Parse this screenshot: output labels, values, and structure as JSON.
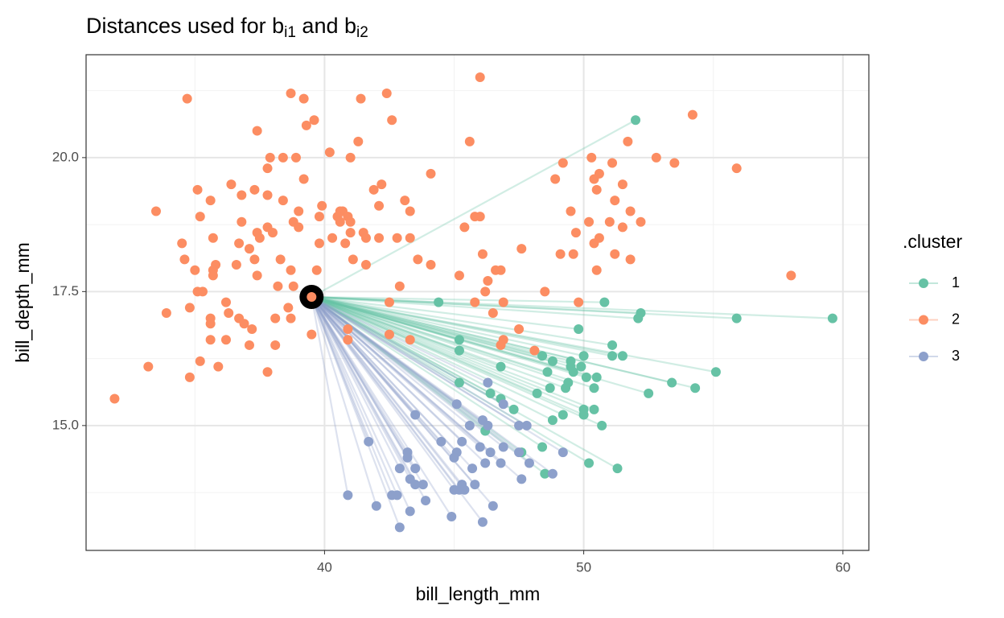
{
  "chart_data": {
    "type": "scatter",
    "title": [
      "Distances used for b",
      "i1",
      " and b",
      "i2"
    ],
    "x_label": "bill_length_mm",
    "y_label": "bill_depth_mm",
    "legend_title": ".cluster",
    "xlim": [
      30.8,
      61.0
    ],
    "ylim": [
      12.67,
      21.92
    ],
    "xticks": [
      40,
      50,
      60
    ],
    "yticks": [
      {
        "value": 15,
        "label": "15.0"
      },
      17.5,
      {
        "value": 20,
        "label": "20.0"
      }
    ],
    "minor_xticks": [
      35,
      45,
      55
    ],
    "minor_yticks": [
      13.75,
      16.25,
      18.75,
      21.25
    ],
    "grid": true,
    "legend": "right",
    "focus": {
      "x": 39.5,
      "y": 17.4,
      "color": "#000000"
    },
    "series": [
      {
        "name": "1",
        "color": "#66c2a5",
        "linked": true,
        "x": [
          52.0,
          44.4,
          50.8,
          59.6,
          55.9,
          52.2,
          52.1,
          49.8,
          45.2,
          45.2,
          51.1,
          51.1,
          51.5,
          50.0,
          48.4,
          48.8,
          49.5,
          49.5,
          46.8,
          49.9,
          48.6,
          55.1,
          49.6,
          50.1,
          50.5,
          49.4,
          53.4,
          45.2,
          50.4,
          49.3,
          48.7,
          54.3,
          46.4,
          52.5,
          48.2,
          46.8,
          50.0,
          50.4,
          47.3,
          49.2,
          48.8,
          50.0,
          50.7,
          46.2,
          48.4,
          47.6,
          50.2,
          51.3,
          48.5
        ],
        "y": [
          20.7,
          17.3,
          17.3,
          17.0,
          17.0,
          17.1,
          17.0,
          16.8,
          16.6,
          16.4,
          16.5,
          16.3,
          16.3,
          16.3,
          16.3,
          16.2,
          16.2,
          16.1,
          16.1,
          16.1,
          16.0,
          16.0,
          16.0,
          15.9,
          15.9,
          15.8,
          15.8,
          15.8,
          15.7,
          15.7,
          15.7,
          15.7,
          15.6,
          15.6,
          15.6,
          15.5,
          15.3,
          15.3,
          15.3,
          15.2,
          15.1,
          15.2,
          15.0,
          14.9,
          14.6,
          14.5,
          14.3,
          14.2,
          14.1
        ]
      },
      {
        "name": "2",
        "color": "#fc8d62",
        "linked": false,
        "x": [
          46.0,
          38.7,
          34.7,
          39.2,
          42.4,
          41.4,
          54.2,
          39.6,
          42.6,
          39.3,
          37.4,
          45.6,
          41.3,
          51.7,
          40.2,
          37.9,
          38.4,
          38.9,
          41.0,
          50.3,
          52.8,
          53.5,
          49.2,
          51.1,
          55.9,
          37.8,
          50.6,
          44.1,
          39.2,
          48.9,
          50.4,
          36.4,
          42.2,
          51.5,
          35.1,
          37.3,
          41.9,
          50.5,
          36.8,
          37.8,
          35.6,
          38.4,
          43.1,
          51.2,
          39.9,
          40.7,
          42.1,
          33.5,
          39.0,
          40.6,
          49.5,
          51.8,
          35.2,
          39.8,
          40.5,
          45.8,
          46.0,
          40.9,
          43.3,
          36.8,
          38.8,
          40.6,
          41.0,
          50.2,
          51.0,
          52.2,
          51.5,
          39.0,
          37.8,
          45.4,
          41.0,
          41.5,
          38.0,
          37.4,
          49.7,
          35.7,
          37.5,
          40.3,
          41.6,
          42.1,
          42.8,
          43.3,
          50.6,
          34.5,
          36.7,
          39.8,
          40.8,
          50.4,
          37.1,
          47.6,
          46.1,
          49.1,
          49.6,
          51.2,
          34.6,
          37.3,
          38.3,
          41.1,
          43.6,
          51.8,
          35.8,
          36.6,
          41.6,
          44.1,
          35.0,
          35.7,
          38.7,
          39.7,
          46.6,
          46.8,
          50.5,
          58.0,
          35.7,
          37.4,
          45.2,
          46.3,
          38.2,
          38.8,
          35.1,
          35.3,
          42.9,
          46.2,
          48.5,
          42.5,
          45.8,
          46.9,
          49.8,
          36.2,
          34.8,
          38.6,
          36.3,
          33.9,
          46.5,
          35.6,
          36.7,
          38.1,
          38.7,
          35.6,
          36.9,
          37.2,
          40.9,
          47.5,
          39.5,
          42.5,
          35.6,
          36.2,
          40.9,
          43.3,
          46.9,
          46.8,
          38.1,
          37.1,
          48.1,
          35.2,
          35.9,
          33.2,
          37.8,
          34.8,
          31.9,
          39.5
        ],
        "y": [
          21.5,
          21.2,
          21.1,
          21.1,
          21.2,
          21.1,
          20.8,
          20.7,
          20.7,
          20.6,
          20.5,
          20.3,
          20.3,
          20.3,
          20.1,
          20.0,
          20.0,
          20.0,
          20.0,
          20.0,
          20.0,
          19.9,
          19.9,
          19.9,
          19.8,
          19.8,
          19.7,
          19.7,
          19.6,
          19.6,
          19.6,
          19.5,
          19.5,
          19.5,
          19.4,
          19.4,
          19.4,
          19.4,
          19.3,
          19.3,
          19.2,
          19.2,
          19.2,
          19.2,
          19.1,
          19.0,
          19.1,
          19.0,
          19.0,
          19.0,
          19.0,
          19.0,
          18.9,
          18.9,
          18.9,
          18.9,
          18.9,
          18.9,
          19.0,
          18.8,
          18.8,
          18.8,
          18.8,
          18.8,
          18.8,
          18.8,
          18.7,
          18.7,
          18.7,
          18.7,
          18.6,
          18.6,
          18.6,
          18.6,
          18.6,
          18.5,
          18.5,
          18.5,
          18.5,
          18.5,
          18.5,
          18.5,
          18.5,
          18.4,
          18.4,
          18.4,
          18.4,
          18.4,
          18.3,
          18.3,
          18.2,
          18.2,
          18.2,
          18.2,
          18.1,
          18.1,
          18.1,
          18.1,
          18.1,
          18.1,
          18.0,
          18.0,
          18.0,
          18.0,
          17.9,
          17.9,
          17.9,
          17.9,
          17.9,
          17.9,
          17.9,
          17.8,
          17.8,
          17.8,
          17.8,
          17.7,
          17.6,
          17.6,
          17.5,
          17.5,
          17.6,
          17.5,
          17.5,
          17.3,
          17.3,
          17.3,
          17.3,
          17.3,
          17.2,
          17.2,
          17.1,
          17.1,
          17.1,
          17.0,
          17.0,
          17.0,
          17.0,
          16.9,
          16.9,
          16.8,
          16.8,
          16.8,
          16.7,
          16.7,
          16.6,
          16.6,
          16.6,
          16.6,
          16.6,
          16.5,
          16.5,
          16.5,
          16.4,
          16.2,
          16.1,
          16.1,
          16.0,
          15.9,
          15.5,
          17.4
        ]
      },
      {
        "name": "3",
        "color": "#8da0cb",
        "linked": true,
        "x": [
          46.3,
          46.9,
          45.1,
          43.5,
          45.6,
          46.1,
          46.3,
          47.5,
          47.8,
          41.7,
          44.5,
          45.3,
          46.0,
          46.9,
          43.2,
          45.1,
          46.4,
          47.5,
          49.2,
          43.2,
          45.0,
          43.5,
          42.9,
          45.7,
          46.2,
          46.8,
          47.9,
          48.8,
          43.3,
          43.5,
          43.8,
          45.3,
          45.8,
          47.6,
          45.0,
          45.2,
          45.4,
          40.9,
          42.6,
          42.8,
          43.9,
          42.0,
          46.5,
          43.3,
          44.9,
          46.1,
          42.9
        ],
        "y": [
          15.8,
          15.4,
          15.4,
          15.2,
          15.0,
          15.1,
          15.0,
          15.0,
          15.0,
          14.7,
          14.7,
          14.7,
          14.6,
          14.6,
          14.5,
          14.5,
          14.5,
          14.5,
          14.5,
          14.4,
          14.4,
          14.2,
          14.2,
          14.2,
          14.3,
          14.3,
          14.3,
          14.1,
          14.0,
          13.9,
          13.9,
          13.9,
          13.9,
          14.0,
          13.8,
          13.8,
          13.8,
          13.7,
          13.7,
          13.7,
          13.6,
          13.5,
          13.5,
          13.4,
          13.3,
          13.2,
          13.1
        ]
      }
    ]
  }
}
